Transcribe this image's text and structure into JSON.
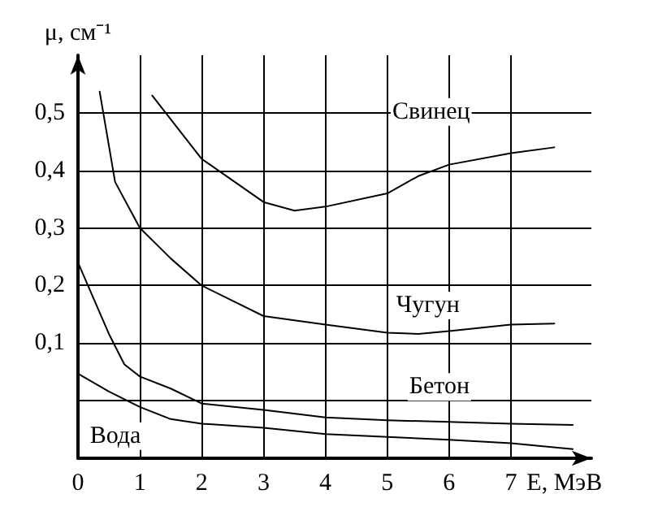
{
  "chart_data": {
    "type": "line",
    "xlabel": "E, МэВ",
    "ylabel": "μ, см⁻¹",
    "xlim": [
      0,
      8.3
    ],
    "xticks": [
      0,
      1,
      2,
      3,
      4,
      5,
      6,
      7
    ],
    "ylim": [
      -0.1,
      0.6
    ],
    "yticks": [
      {
        "value": 0,
        "label": null
      },
      {
        "value": 0.1,
        "label": "0,1"
      },
      {
        "value": 0.2,
        "label": "0,2"
      },
      {
        "value": 0.3,
        "label": "0,3"
      },
      {
        "value": 0.4,
        "label": "0,4"
      },
      {
        "value": 0.5,
        "label": "0,5"
      }
    ],
    "grid": true,
    "legend": false,
    "marker": "none",
    "line_style": "solid",
    "series": [
      {
        "name": "Свинец",
        "color": "#000000",
        "x": [
          1.2,
          2,
          3,
          3.5,
          4,
          5,
          5.5,
          6,
          7,
          7.7
        ],
        "values": [
          0.53,
          0.42,
          0.345,
          0.33,
          0.337,
          0.36,
          0.39,
          0.41,
          0.43,
          0.44
        ]
      },
      {
        "name": "Чугун",
        "color": "#000000",
        "x": [
          0.35,
          0.6,
          1,
          1.5,
          2,
          3,
          4,
          5,
          5.5,
          6,
          7,
          7.7
        ],
        "values": [
          0.537,
          0.38,
          0.3,
          0.247,
          0.2,
          0.147,
          0.132,
          0.118,
          0.116,
          0.121,
          0.132,
          0.134
        ]
      },
      {
        "name": "Бетон",
        "color": "#000000",
        "x": [
          0,
          0.5,
          0.75,
          1,
          1.5,
          2,
          3,
          4,
          5,
          6,
          7,
          8
        ],
        "values": [
          0.24,
          0.116,
          0.063,
          0.042,
          0.021,
          -0.005,
          -0.016,
          -0.029,
          -0.034,
          -0.037,
          -0.04,
          -0.042
        ]
      },
      {
        "name": "Вода",
        "color": "#000000",
        "x": [
          0,
          0.5,
          1,
          1.5,
          2,
          3,
          4,
          5,
          6,
          7,
          8
        ],
        "values": [
          0.047,
          0.016,
          -0.011,
          -0.032,
          -0.04,
          -0.047,
          -0.058,
          -0.063,
          -0.068,
          -0.074,
          -0.084
        ]
      }
    ]
  }
}
